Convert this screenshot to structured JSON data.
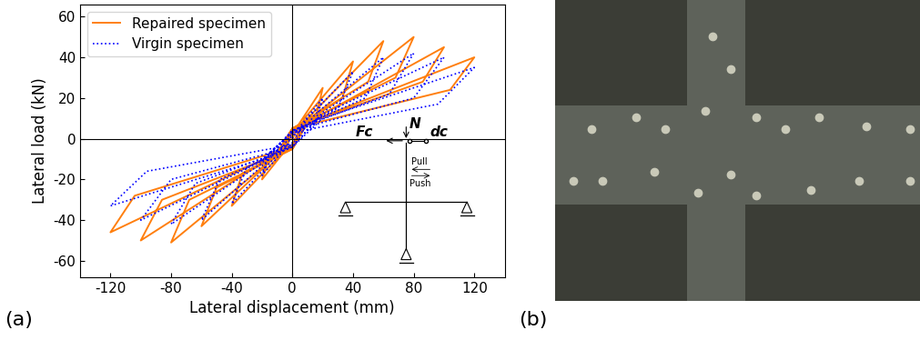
{
  "chart_data": {
    "type": "line",
    "panel_labels": [
      "(a)",
      "(b)"
    ],
    "x_label": "Lateral displacement (mm)",
    "y_label": "Lateral load (kN)",
    "xlim": [
      -140,
      140
    ],
    "xticks": [
      -120,
      -80,
      -40,
      0,
      40,
      80,
      120
    ],
    "ylim": [
      -68,
      66
    ],
    "yticks": [
      -60,
      -40,
      -20,
      0,
      20,
      40,
      60
    ],
    "legend": "upper left",
    "grid": false,
    "annotations": [
      "N",
      "Fc",
      "dc",
      "Pull",
      "Push"
    ],
    "series": [
      {
        "name": "Repaired specimen",
        "color": "#ff7f0e",
        "line_style": "solid",
        "x": [
          0,
          5,
          20,
          16,
          0,
          -5,
          -20,
          -16,
          0,
          8,
          40,
          33,
          0,
          -8,
          -40,
          -33,
          0,
          10,
          60,
          50,
          0,
          -10,
          -60,
          -50,
          0,
          10,
          80,
          68,
          0,
          -10,
          -80,
          -68,
          0,
          10,
          100,
          86,
          0,
          -10,
          -100,
          -86,
          0,
          10,
          120,
          104,
          0,
          -10,
          -120,
          -104,
          0
        ],
        "values": [
          0,
          8,
          25,
          12,
          3,
          -6,
          -20,
          -9,
          -3,
          10,
          38,
          20,
          4,
          -8,
          -33,
          -17,
          -4,
          10,
          48,
          28,
          5,
          -8,
          -43,
          -24,
          -5,
          9,
          50,
          30,
          5,
          -8,
          -51,
          -30,
          -5,
          8,
          45,
          28,
          5,
          -7,
          -50,
          -30,
          -5,
          8,
          40,
          24,
          5,
          -7,
          -46,
          -28,
          -4
        ]
      },
      {
        "name": "Virgin specimen",
        "color": "#0000ff",
        "line_style": "dotted",
        "x": [
          0,
          5,
          20,
          15,
          0,
          -5,
          -20,
          -15,
          0,
          10,
          40,
          30,
          0,
          -10,
          -40,
          -30,
          0,
          15,
          60,
          48,
          0,
          -15,
          -60,
          -48,
          0,
          20,
          80,
          64,
          0,
          -20,
          -80,
          -64,
          0,
          20,
          100,
          80,
          0,
          -20,
          -100,
          -80,
          0,
          20,
          120,
          96,
          0,
          -20,
          -120,
          -96,
          0
        ],
        "values": [
          0,
          6,
          20,
          8,
          2,
          -5,
          -18,
          -7,
          -2,
          10,
          33,
          15,
          3,
          -8,
          -32,
          -14,
          -3,
          12,
          40,
          20,
          4,
          -10,
          -40,
          -20,
          -4,
          13,
          42,
          22,
          4,
          -12,
          -42,
          -22,
          -4,
          12,
          40,
          20,
          4,
          -11,
          -40,
          -20,
          -4,
          10,
          35,
          17,
          3,
          -10,
          -33,
          -16,
          -3
        ]
      }
    ]
  }
}
